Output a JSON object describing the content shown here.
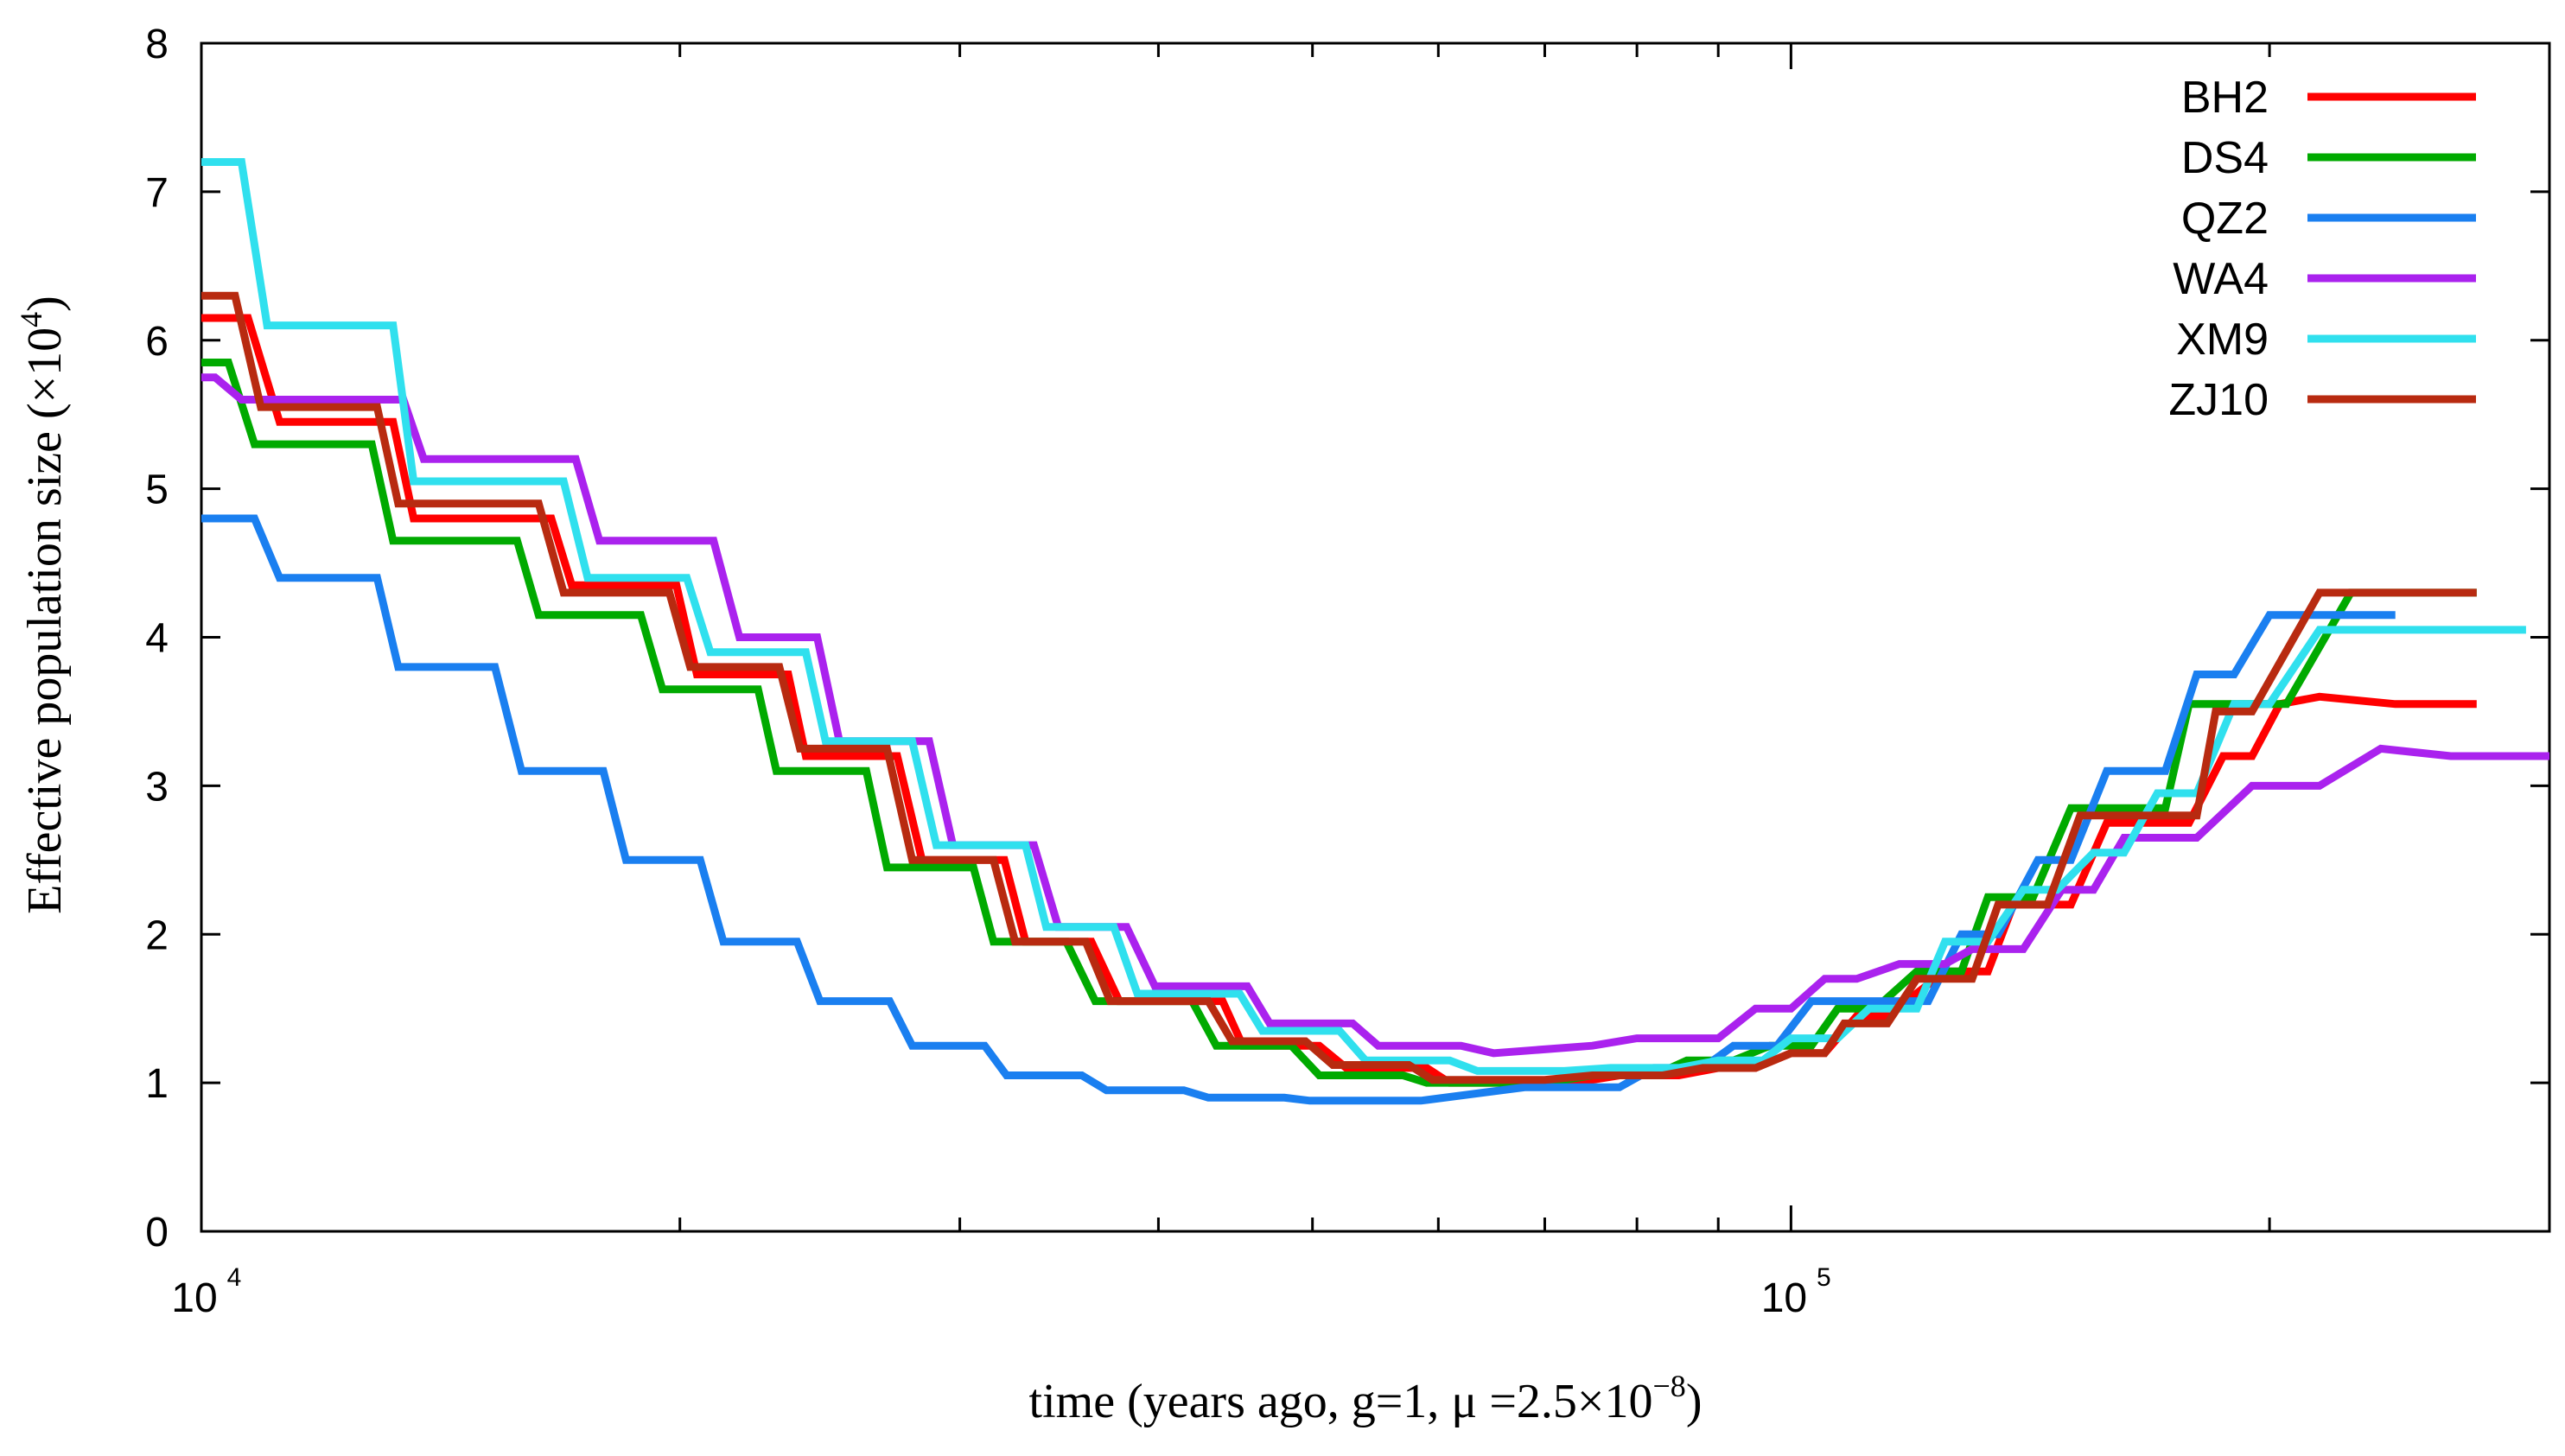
{
  "chart_data": {
    "type": "line",
    "title": "",
    "xscale": "log",
    "xlim": [
      10000,
      300000
    ],
    "ylim": [
      0,
      8
    ],
    "ylabel_parts": {
      "main": "Effective population size (×10",
      "sup": "4",
      "end": ")"
    },
    "xlabel_parts": {
      "main": "time (years ago, g=1,   μ =2.5×10",
      "sup": "−8",
      "end": ")"
    },
    "y_ticks": [
      "0",
      "1",
      "2",
      "3",
      "4",
      "5",
      "6",
      "7",
      "8"
    ],
    "x_ticks": [
      {
        "base": "10",
        "exp": "4",
        "value": 10000
      },
      {
        "base": "10",
        "exp": "5",
        "value": 100000
      }
    ],
    "legend_position": "top-right",
    "series": [
      {
        "name": "BH2",
        "color": "#ff0000",
        "x": [
          10000,
          10700,
          11200,
          13200,
          13600,
          16600,
          17100,
          19900,
          20500,
          23400,
          24000,
          27400,
          28400,
          32000,
          33000,
          36300,
          37800,
          43900,
          45200,
          50500,
          52500,
          59000,
          61000,
          73000,
          78000,
          85000,
          90000,
          95000,
          100000,
          105000,
          110000,
          115000,
          125000,
          133000,
          138000,
          150000,
          158000,
          165000,
          172000,
          178000,
          187000,
          195000,
          203000,
          215000,
          240000,
          270000
        ],
        "y": [
          6.15,
          6.15,
          5.45,
          5.45,
          4.8,
          4.8,
          4.35,
          4.35,
          3.75,
          3.75,
          3.2,
          3.2,
          2.5,
          2.5,
          1.95,
          1.95,
          1.55,
          1.55,
          1.25,
          1.25,
          1.1,
          1.1,
          1.0,
          1.0,
          1.05,
          1.05,
          1.1,
          1.1,
          1.2,
          1.2,
          1.45,
          1.45,
          1.75,
          1.75,
          2.2,
          2.2,
          2.75,
          2.75,
          2.75,
          2.75,
          3.2,
          3.2,
          3.55,
          3.6,
          3.55,
          3.55
        ]
      },
      {
        "name": "DS4",
        "color": "#00aa00",
        "x": [
          10000,
          10400,
          10800,
          12800,
          13200,
          15800,
          16300,
          18900,
          19500,
          22400,
          23000,
          26200,
          27000,
          30600,
          31500,
          35000,
          36500,
          42000,
          43500,
          48500,
          50500,
          57000,
          59000,
          70000,
          75000,
          82000,
          86000,
          92000,
          97000,
          103000,
          107000,
          113000,
          120000,
          128000,
          133000,
          142000,
          150000,
          157000,
          165000,
          172000,
          178000,
          185000,
          192000,
          205000,
          225000,
          250000,
          270000
        ],
        "y": [
          5.85,
          5.85,
          5.3,
          5.3,
          4.65,
          4.65,
          4.15,
          4.15,
          3.65,
          3.65,
          3.1,
          3.1,
          2.45,
          2.45,
          1.95,
          1.95,
          1.55,
          1.55,
          1.25,
          1.25,
          1.05,
          1.05,
          1.0,
          1.0,
          1.05,
          1.05,
          1.15,
          1.15,
          1.25,
          1.25,
          1.5,
          1.5,
          1.75,
          1.75,
          2.25,
          2.25,
          2.85,
          2.85,
          2.85,
          2.85,
          3.55,
          3.55,
          3.55,
          3.55,
          4.3,
          4.3,
          4.3
        ]
      },
      {
        "name": "QZ2",
        "color": "#1a7ff0",
        "x": [
          10000,
          10800,
          11200,
          12900,
          13300,
          15300,
          15900,
          17900,
          18500,
          20600,
          21300,
          23700,
          24500,
          27100,
          28000,
          31100,
          32100,
          35800,
          37100,
          41500,
          43000,
          48000,
          49800,
          56500,
          58500,
          68000,
          72000,
          78000,
          82000,
          88000,
          92000,
          98000,
          103000,
          110000,
          115000,
          122000,
          128000,
          135000,
          143000,
          150000,
          158000,
          165000,
          172000,
          180000,
          190000,
          200000,
          220000,
          240000
        ],
        "y": [
          4.8,
          4.8,
          4.4,
          4.4,
          3.8,
          3.8,
          3.1,
          3.1,
          2.5,
          2.5,
          1.95,
          1.95,
          1.55,
          1.55,
          1.25,
          1.25,
          1.05,
          1.05,
          0.95,
          0.95,
          0.9,
          0.9,
          0.88,
          0.88,
          0.88,
          0.97,
          0.97,
          0.97,
          1.1,
          1.1,
          1.25,
          1.25,
          1.55,
          1.55,
          1.55,
          1.55,
          2.0,
          2.0,
          2.5,
          2.5,
          3.1,
          3.1,
          3.1,
          3.75,
          3.75,
          4.15,
          4.15,
          4.15
        ]
      },
      {
        "name": "WA4",
        "color": "#aa22ee",
        "x": [
          10000,
          10200,
          10600,
          13400,
          13800,
          17200,
          17800,
          21000,
          21800,
          24400,
          25200,
          28700,
          29700,
          33400,
          34600,
          38200,
          39800,
          45500,
          47000,
          53000,
          55000,
          62000,
          65000,
          75000,
          80000,
          90000,
          95000,
          100000,
          105000,
          110000,
          117000,
          125000,
          130000,
          140000,
          148000,
          155000,
          162000,
          170000,
          180000,
          195000,
          215000,
          235000,
          260000,
          300000
        ],
        "y": [
          5.75,
          5.75,
          5.6,
          5.6,
          5.2,
          5.2,
          4.65,
          4.65,
          4.0,
          4.0,
          3.3,
          3.3,
          2.6,
          2.6,
          2.05,
          2.05,
          1.65,
          1.65,
          1.4,
          1.4,
          1.25,
          1.25,
          1.2,
          1.25,
          1.3,
          1.3,
          1.5,
          1.5,
          1.7,
          1.7,
          1.8,
          1.8,
          1.9,
          1.9,
          2.3,
          2.3,
          2.65,
          2.65,
          2.65,
          3.0,
          3.0,
          3.25,
          3.2,
          3.2
        ]
      },
      {
        "name": "XM9",
        "color": "#30e0ee",
        "x": [
          10000,
          10600,
          11000,
          13200,
          13600,
          16900,
          17500,
          20200,
          20900,
          24000,
          24700,
          28000,
          29000,
          33000,
          34000,
          37500,
          38800,
          45000,
          46500,
          52000,
          54000,
          61000,
          63500,
          72000,
          77000,
          85000,
          90000,
          96000,
          100000,
          107000,
          112000,
          120000,
          125000,
          133000,
          140000,
          147000,
          155000,
          162000,
          170000,
          180000,
          190000,
          200000,
          215000,
          240000,
          290000
        ],
        "y": [
          7.2,
          7.2,
          6.1,
          6.1,
          5.05,
          5.05,
          4.4,
          4.4,
          3.9,
          3.9,
          3.3,
          3.3,
          2.6,
          2.6,
          2.05,
          2.05,
          1.6,
          1.6,
          1.35,
          1.35,
          1.15,
          1.15,
          1.08,
          1.08,
          1.1,
          1.1,
          1.15,
          1.15,
          1.3,
          1.3,
          1.5,
          1.5,
          1.95,
          1.95,
          2.3,
          2.3,
          2.55,
          2.55,
          2.95,
          2.95,
          3.55,
          3.55,
          4.05,
          4.05,
          4.05
        ]
      },
      {
        "name": "ZJ10",
        "color": "#b82a10",
        "x": [
          10000,
          10500,
          10900,
          12900,
          13300,
          16300,
          16900,
          19700,
          20300,
          23100,
          23800,
          27000,
          28000,
          31500,
          32500,
          36000,
          37300,
          43000,
          44500,
          49500,
          51500,
          57500,
          59500,
          70000,
          75000,
          83000,
          88000,
          95000,
          100000,
          105000,
          108000,
          115000,
          120000,
          130000,
          135000,
          145000,
          152000,
          160000,
          168000,
          180000,
          185000,
          195000,
          215000,
          240000,
          270000
        ],
        "y": [
          6.3,
          6.3,
          5.55,
          5.55,
          4.9,
          4.9,
          4.3,
          4.3,
          3.8,
          3.8,
          3.25,
          3.25,
          2.5,
          2.5,
          1.95,
          1.95,
          1.55,
          1.55,
          1.28,
          1.28,
          1.12,
          1.12,
          1.02,
          1.02,
          1.05,
          1.05,
          1.1,
          1.1,
          1.2,
          1.2,
          1.4,
          1.4,
          1.7,
          1.7,
          2.2,
          2.2,
          2.8,
          2.8,
          2.8,
          2.8,
          3.5,
          3.5,
          4.3,
          4.3,
          4.3
        ]
      }
    ]
  }
}
